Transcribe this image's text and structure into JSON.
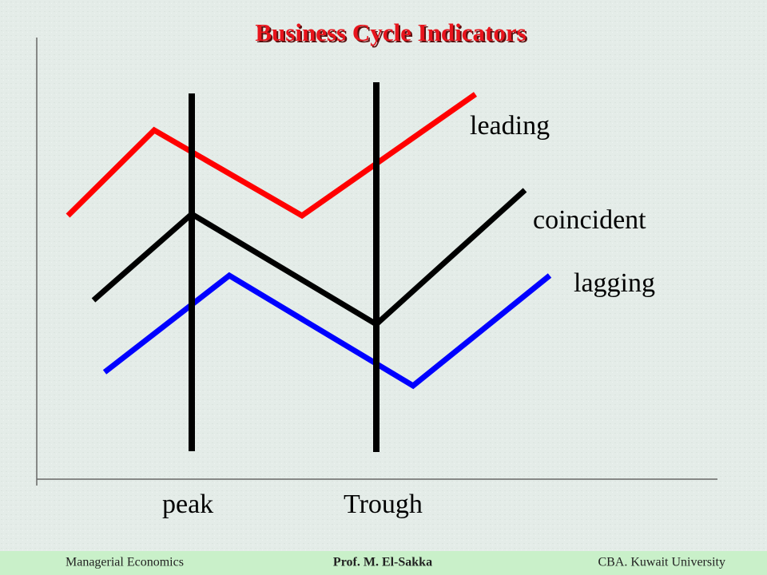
{
  "header": {
    "title": "Business Cycle Indicators"
  },
  "diagram": {
    "series_labels": [
      "leading",
      "coincident",
      "lagging"
    ],
    "phase_labels": [
      "peak",
      "Trough"
    ]
  },
  "footer": {
    "left": "Managerial Economics",
    "center": "Prof. M. El-Sakka",
    "right": "CBA. Kuwait University"
  }
}
